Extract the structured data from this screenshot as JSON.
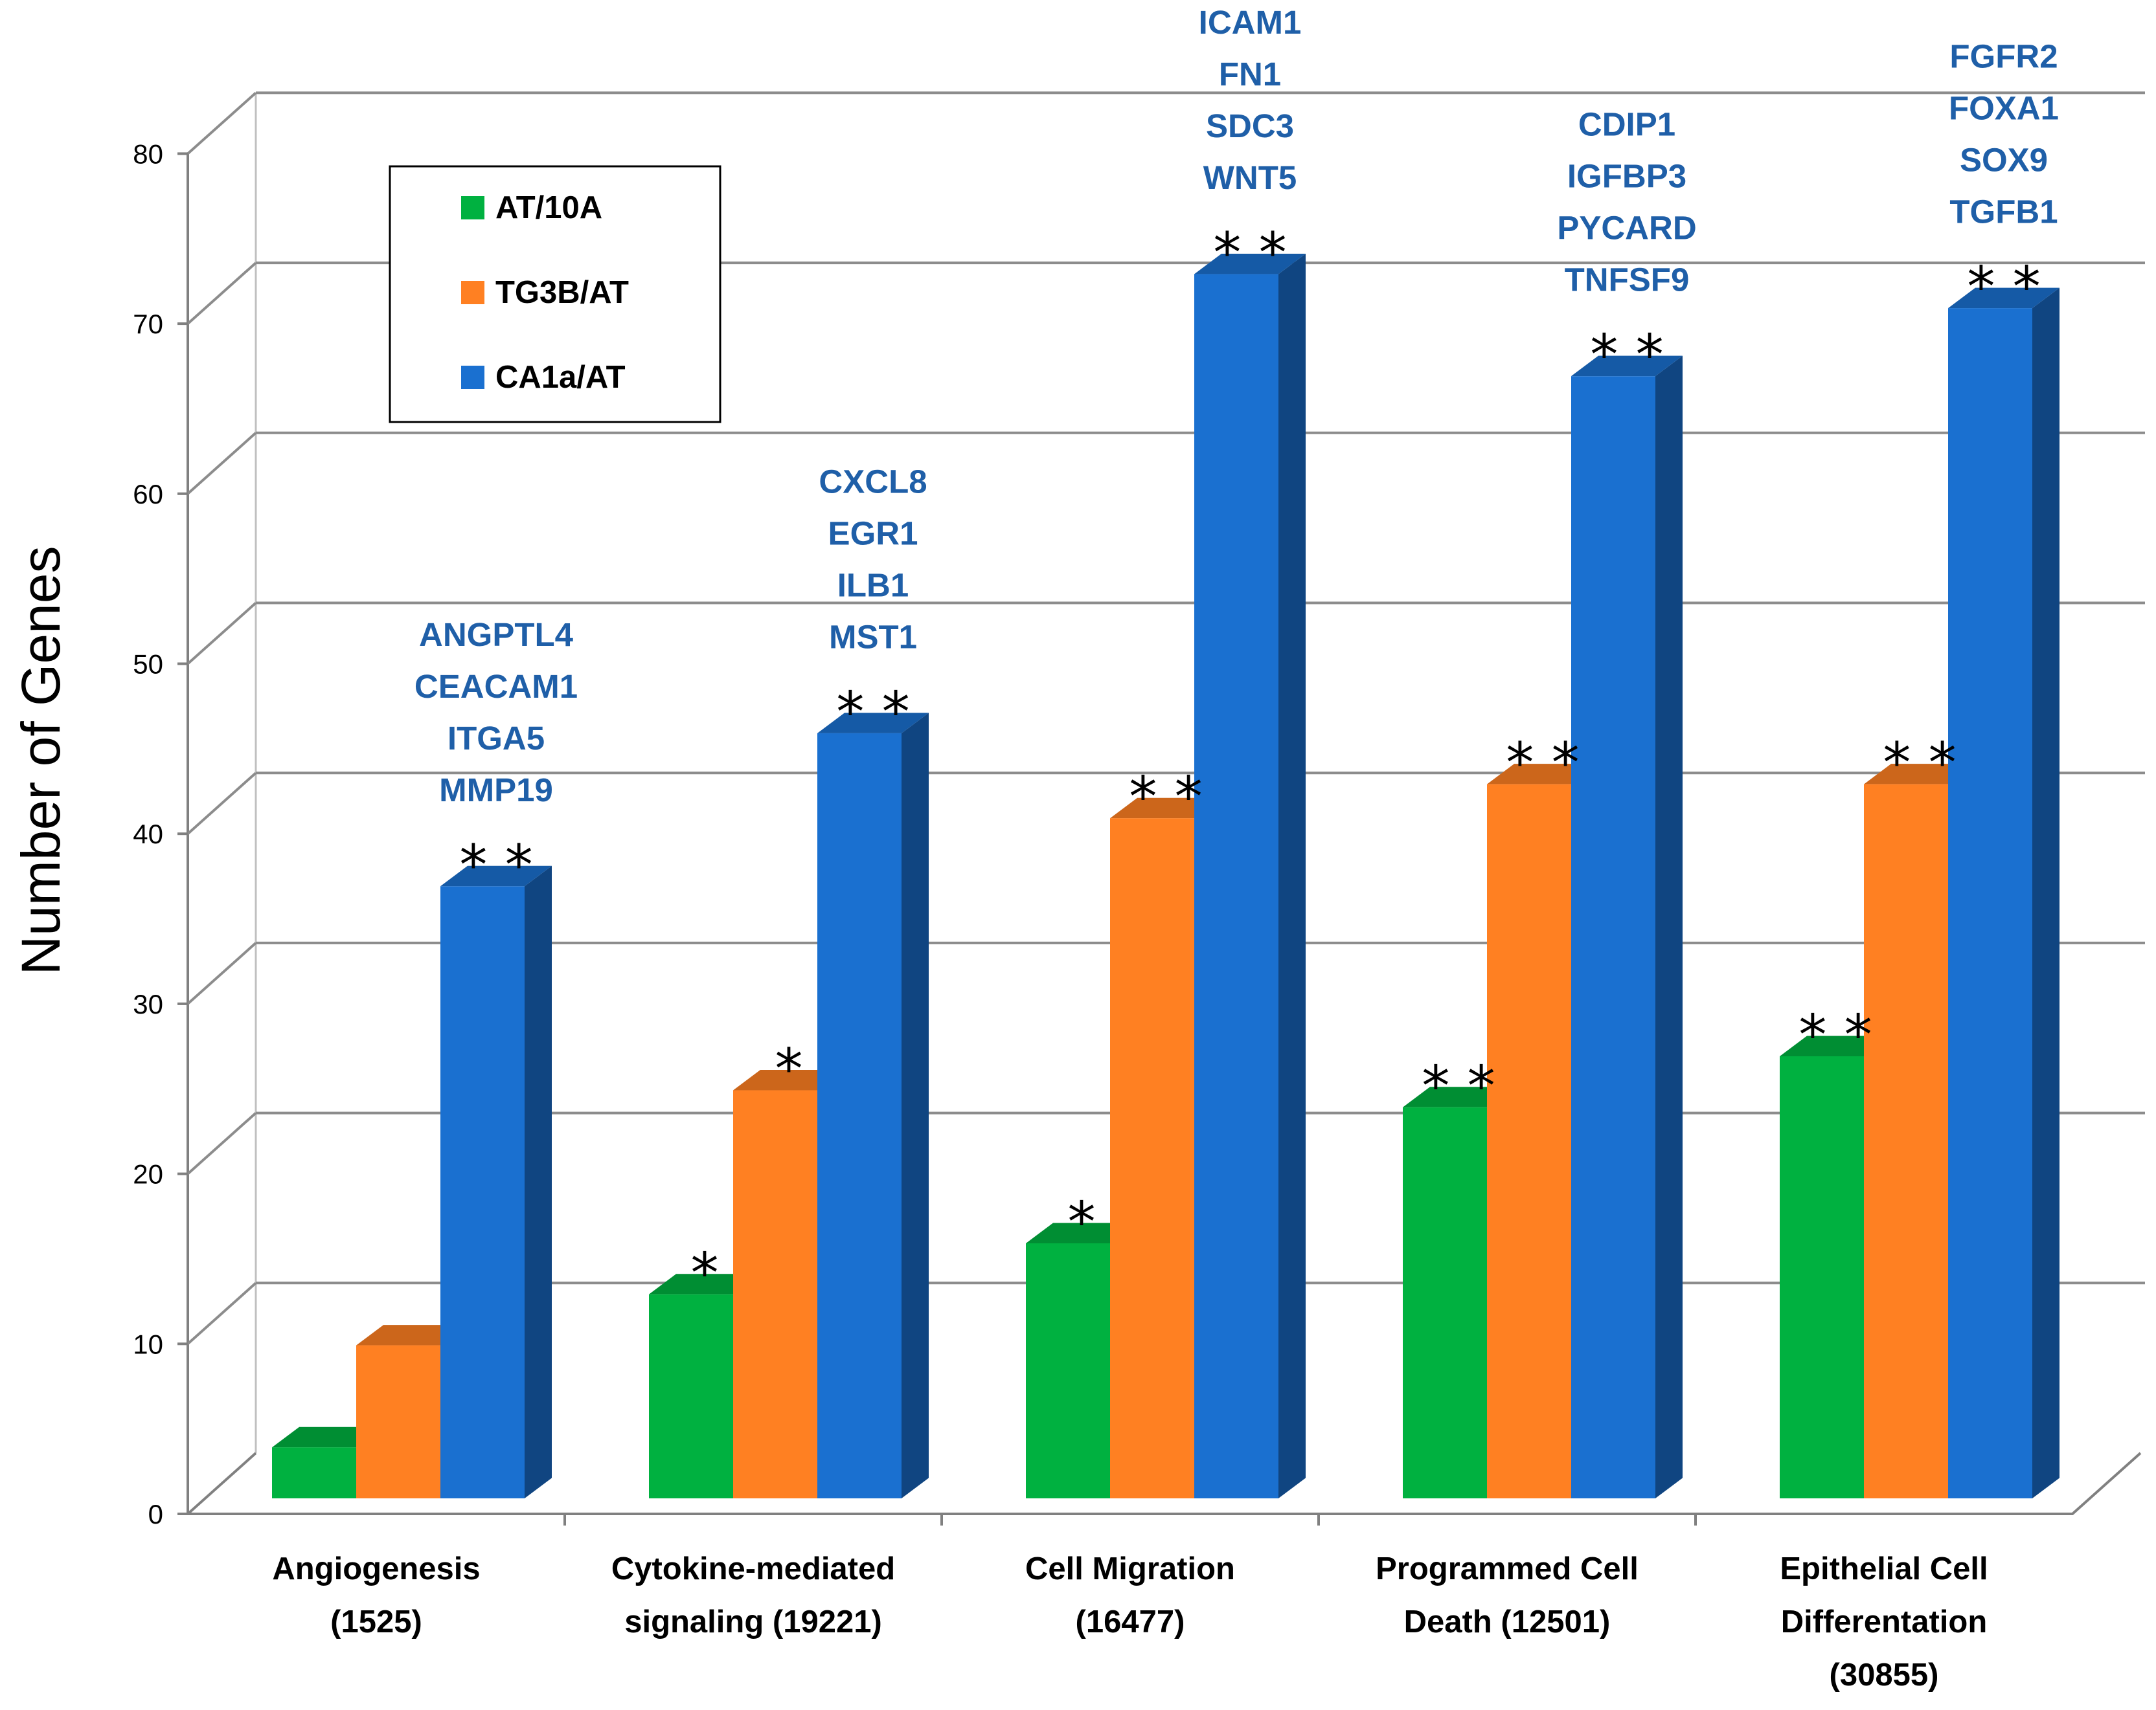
{
  "chart_data": {
    "type": "bar",
    "ylabel": "Number of Genes",
    "xlabel": "",
    "ylim": [
      0,
      80
    ],
    "yticks": [
      0,
      10,
      20,
      30,
      40,
      50,
      60,
      70,
      80
    ],
    "grid": true,
    "legend_position": "top-left",
    "categories": [
      [
        "Angiogenesis",
        "(1525)"
      ],
      [
        "Cytokine-mediated",
        "signaling (19221)"
      ],
      [
        "Cell Migration",
        "(16477)"
      ],
      [
        "Programmed Cell",
        "Death (12501)"
      ],
      [
        "Epithelial Cell",
        "Differentation",
        "(30855)"
      ]
    ],
    "series": [
      {
        "name": "AT/10A",
        "color": "#00b140",
        "values": [
          3,
          12,
          15,
          23,
          26
        ],
        "stars": [
          "",
          "*",
          "*",
          "**",
          "**"
        ]
      },
      {
        "name": "TG3B/AT",
        "color": "#ff8022",
        "values": [
          9,
          24,
          40,
          42,
          42
        ],
        "stars": [
          "",
          "*",
          "**",
          "**",
          "**"
        ]
      },
      {
        "name": "CA1a/AT",
        "color": "#1a70d0",
        "values": [
          36,
          45,
          72,
          66,
          70
        ],
        "stars": [
          "**",
          "**",
          "**",
          "**",
          "**"
        ]
      }
    ],
    "gene_annotations": [
      [
        "ANGPTL4",
        "CEACAM1",
        "ITGA5",
        "MMP19"
      ],
      [
        "CXCL8",
        "EGR1",
        "ILB1",
        "MST1"
      ],
      [
        "ICAM1",
        "FN1",
        "SDC3",
        "WNT5"
      ],
      [
        "CDIP1",
        "IGFBP3",
        "PYCARD",
        "TNFSF9"
      ],
      [
        "FGFR2",
        "FOXA1",
        "SOX9",
        "TGFB1"
      ]
    ]
  }
}
